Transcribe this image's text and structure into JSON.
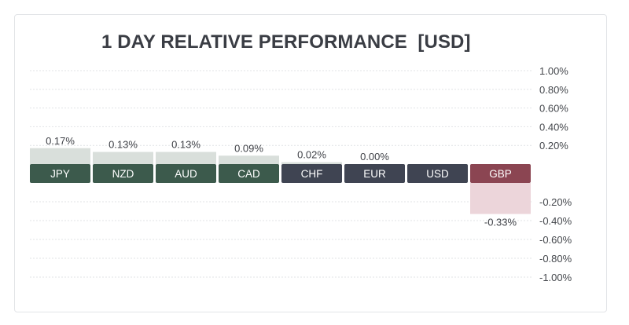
{
  "chart_data": {
    "type": "bar",
    "title": "1 DAY RELATIVE PERFORMANCE  [USD]",
    "xlabel": "",
    "ylabel": "",
    "categories": [
      "JPY",
      "NZD",
      "AUD",
      "CAD",
      "CHF",
      "EUR",
      "USD",
      "GBP"
    ],
    "values": [
      0.17,
      0.13,
      0.13,
      0.09,
      0.02,
      0.0,
      null,
      -0.33
    ],
    "value_labels": [
      "0.17%",
      "0.13%",
      "0.13%",
      "0.09%",
      "0.02%",
      "0.00%",
      "",
      "-0.33%"
    ],
    "ylim": [
      -1.0,
      1.0
    ],
    "yticks_positive": [
      1.0,
      0.8,
      0.6,
      0.4,
      0.2
    ],
    "yticks_negative": [
      -0.2,
      -0.4,
      -0.6,
      -0.8,
      -1.0
    ],
    "ytick_labels_positive": [
      "1.00%",
      "0.80%",
      "0.60%",
      "0.40%",
      "0.20%"
    ],
    "ytick_labels_negative": [
      "-0.20%",
      "-0.40%",
      "-0.60%",
      "-0.80%",
      "-1.00%"
    ],
    "grid": true,
    "colors": {
      "positive_chip": "#3c5a4c",
      "neutral_chip": "#3f4452",
      "negative_chip": "#8b4552",
      "positive_bar": "#d9dfdb",
      "negative_bar": "#ecd5da",
      "grid": "#e1e3e6"
    },
    "chip_styles": [
      "positive",
      "positive",
      "positive",
      "positive",
      "neutral",
      "neutral",
      "neutral",
      "negative"
    ]
  }
}
